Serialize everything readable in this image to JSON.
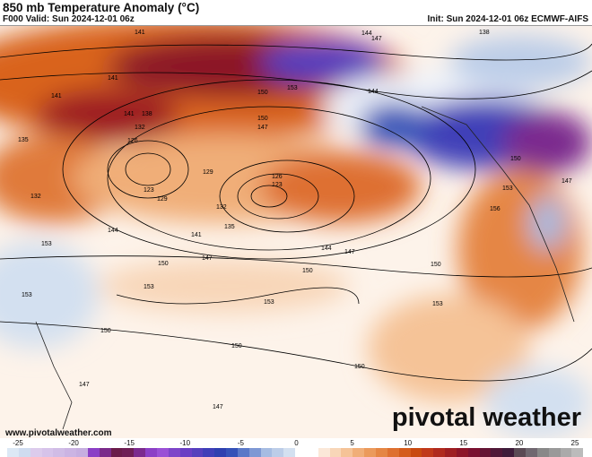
{
  "header": {
    "title": "850 mb Temperature Anomaly (°C)",
    "valid": "F000 Valid: Sun 2024-12-01 06z",
    "init": "Init: Sun 2024-12-01 06z ECMWF-AIFS"
  },
  "branding": {
    "logo": "pivotal weather",
    "url": "www.pivotalweather.com"
  },
  "colorbar": {
    "ticks": [
      "-25",
      "-20",
      "-15",
      "-10",
      "-5",
      "0",
      "5",
      "10",
      "15",
      "20",
      "25"
    ],
    "colors": [
      "#dce8f5",
      "#cfdcf0",
      "#dccbec",
      "#d6c3ea",
      "#d0bce6",
      "#cbb4e3",
      "#c6aee0",
      "#8b3fc6",
      "#7a2a8a",
      "#6a1c4a",
      "#6e1e55",
      "#7b2a8e",
      "#8b3fc6",
      "#9a50d6",
      "#7d45c9",
      "#6a3ec4",
      "#5540bd",
      "#3f3fb8",
      "#2e40b0",
      "#3552b8",
      "#5a78c8",
      "#7e98d4",
      "#a6bce2",
      "#bccde8",
      "#d3e0f0",
      "#ffffff",
      "#ffffff",
      "#fbe8d8",
      "#f8d6b8",
      "#f5c397",
      "#f0ae78",
      "#eb9a5c",
      "#e58644",
      "#de7030",
      "#d45c1c",
      "#c84a10",
      "#c0391a",
      "#b02a1e",
      "#9e1e22",
      "#8c1428",
      "#7a1030",
      "#641434",
      "#501838",
      "#3e1c3a",
      "#5a4a54",
      "#706870",
      "#888888",
      "#999999",
      "#aaaaaa",
      "#bbbbbb"
    ]
  },
  "contour_labels": [
    "141",
    "141",
    "141",
    "144",
    "147",
    "138",
    "144",
    "141",
    "138",
    "135",
    "132",
    "126",
    "123",
    "129",
    "132",
    "144",
    "150",
    "153",
    "147",
    "150",
    "129",
    "126",
    "123",
    "132",
    "135",
    "141",
    "147",
    "150",
    "153",
    "144",
    "147",
    "156",
    "153",
    "150",
    "147",
    "150",
    "150",
    "153",
    "153",
    "150",
    "150",
    "150",
    "147",
    "147",
    "153",
    "153"
  ]
}
